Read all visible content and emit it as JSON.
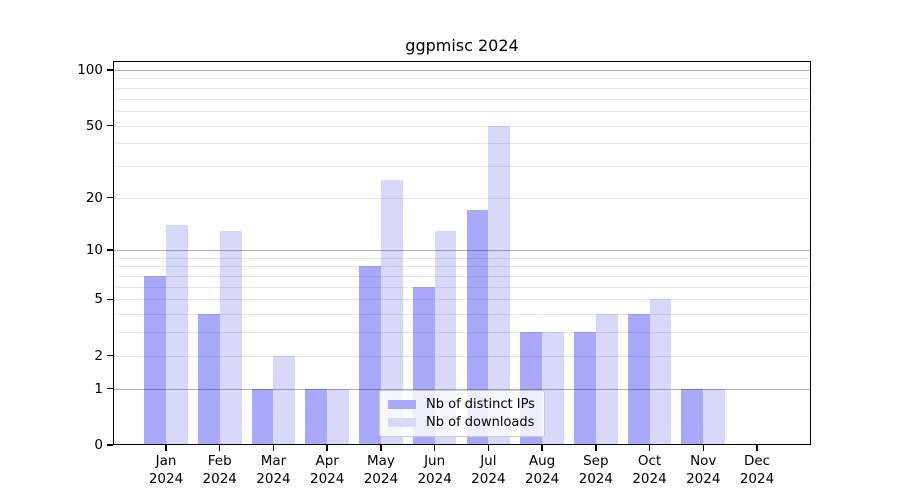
{
  "title": "ggpmisc 2024",
  "chart_data": {
    "type": "bar",
    "title": "ggpmisc 2024",
    "x_tick_year": "2024",
    "categories": [
      "Jan",
      "Feb",
      "Mar",
      "Apr",
      "May",
      "Jun",
      "Jul",
      "Aug",
      "Sep",
      "Oct",
      "Nov",
      "Dec"
    ],
    "series": [
      {
        "name": "Nb of distinct IPs",
        "color": "#a9a9fb",
        "values": [
          7,
          4,
          1,
          1,
          8,
          6,
          17,
          3,
          3,
          4,
          1,
          0
        ]
      },
      {
        "name": "Nb of downloads",
        "color": "#d8d8fb",
        "values": [
          14,
          13,
          2,
          1,
          25,
          13,
          50,
          3,
          4,
          5,
          1,
          0
        ]
      }
    ],
    "y_scale": "log1p",
    "ylim": [
      0,
      112
    ],
    "y_tick_labels": [
      "0",
      "1",
      "2",
      "5",
      "10",
      "20",
      "50",
      "100"
    ],
    "y_tick_values": [
      0,
      1,
      2,
      5,
      10,
      20,
      50,
      100
    ],
    "grid_major_values": [
      1,
      10,
      100
    ],
    "grid_minor_values": [
      2,
      3,
      4,
      5,
      6,
      7,
      8,
      9,
      20,
      30,
      40,
      50,
      60,
      70,
      80,
      90
    ],
    "legend_position": "lower center",
    "grid": "on",
    "xlabel": "",
    "ylabel": ""
  }
}
